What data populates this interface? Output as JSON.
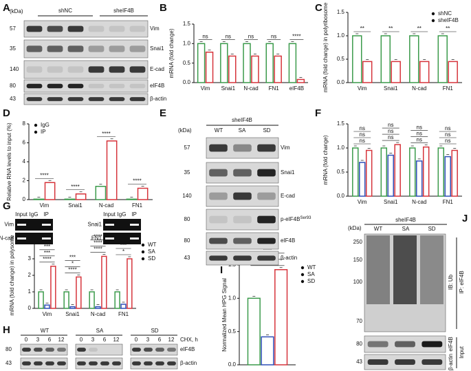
{
  "panel_letters": [
    "A",
    "B",
    "C",
    "D",
    "E",
    "F",
    "G",
    "H",
    "I",
    "J"
  ],
  "chart_data": [
    {
      "type": "bar",
      "ylabel": "mRNA (fold change)",
      "categories": [
        "Vim",
        "Snai1",
        "N-cad",
        "FN1",
        "eIF4B"
      ],
      "series": [
        {
          "color": "#3a9a4a",
          "values": [
            1,
            1,
            1,
            1,
            1
          ]
        },
        {
          "color": "#d6333a",
          "values": [
            0.78,
            0.68,
            0.68,
            0.68,
            0.08
          ]
        }
      ],
      "ylim": [
        0,
        1.5
      ],
      "yticks": [
        {
          "value": 0,
          "label": "0.0"
        },
        {
          "value": 0.5,
          "label": "0.5"
        },
        {
          "value": 1,
          "label": "1.0"
        },
        {
          "value": 1.5,
          "label": "1.5"
        }
      ],
      "annotations": [
        "ns",
        "ns",
        "ns",
        "ns",
        "****"
      ]
    },
    {
      "type": "bar",
      "ylabel": "mRNA (fold change) in polyribosome",
      "categories": [
        "Vim",
        "Snai1",
        "N-cad",
        "FN1"
      ],
      "series": [
        {
          "name": "shNC",
          "color": "#3a9a4a",
          "values": [
            1,
            1,
            1,
            1
          ]
        },
        {
          "name": "sheIF4B",
          "color": "#d6333a",
          "values": [
            0.45,
            0.45,
            0.45,
            0.45
          ]
        }
      ],
      "ylim": [
        0,
        1.5
      ],
      "yticks": [
        {
          "value": 0,
          "label": "0.0"
        },
        {
          "value": 0.5,
          "label": "0.5"
        },
        {
          "value": 1,
          "label": "1.0"
        },
        {
          "value": 1.5,
          "label": "1.5"
        }
      ],
      "annotations": [
        "**",
        "**",
        "**",
        "**"
      ],
      "legend": "top-right"
    },
    {
      "type": "bar",
      "ylabel": "Relative RNA levels to input (%)",
      "categories": [
        "Vim",
        "Snai1",
        "N-cad",
        "FN1"
      ],
      "series": [
        {
          "name": "IgG",
          "color": "#3a9a4a",
          "values": [
            0.05,
            0.05,
            1.4,
            0.05
          ]
        },
        {
          "name": "IP",
          "color": "#d6333a",
          "values": [
            1.8,
            0.6,
            6.2,
            1.2
          ]
        }
      ],
      "ylim": [
        0,
        8
      ],
      "yticks": [
        0,
        2,
        4,
        6,
        8
      ],
      "annotations": [
        "****",
        "****",
        "****",
        "****"
      ],
      "legend": "top-left"
    },
    {
      "type": "bar",
      "ylabel": "mRNA (fold change)",
      "categories": [
        "Vim",
        "Snai1",
        "N-cad",
        "FN1"
      ],
      "series": [
        {
          "color": "#3a9a4a",
          "values": [
            1,
            1,
            1,
            1
          ]
        },
        {
          "color": "#2f4fb8",
          "values": [
            0.7,
            0.85,
            0.73,
            0.82
          ]
        },
        {
          "color": "#d6333a",
          "values": [
            0.95,
            1.07,
            1.02,
            0.95
          ]
        }
      ],
      "ylim": [
        0,
        1.5
      ],
      "yticks": [
        {
          "value": 0,
          "label": "0.0"
        },
        {
          "value": 0.5,
          "label": "0.5"
        },
        {
          "value": 1,
          "label": "1.0"
        },
        {
          "value": 1.5,
          "label": "1.5"
        }
      ],
      "annotations": [
        [
          "ns",
          "ns",
          "ns"
        ],
        [
          "ns",
          "ns",
          "ns"
        ],
        [
          "ns",
          "ns",
          "ns"
        ],
        [
          "ns",
          "ns",
          "ns"
        ]
      ]
    },
    {
      "type": "bar",
      "ylabel": "mRNA (fold change) in polysome",
      "categories": [
        "Vim",
        "Snai1",
        "N-cad",
        "FN1"
      ],
      "series": [
        {
          "name": "WT",
          "color": "#3a9a4a",
          "values": [
            1,
            1,
            1,
            1
          ]
        },
        {
          "name": "SA",
          "color": "#2f4fb8",
          "values": [
            0.2,
            0.1,
            0.1,
            0.25
          ]
        },
        {
          "name": "SD",
          "color": "#d6333a",
          "values": [
            2.55,
            1.9,
            3.15,
            3.0
          ]
        }
      ],
      "ylim": [
        0,
        4
      ],
      "yticks": [
        0,
        1,
        2,
        3,
        4
      ],
      "annotations": [
        [
          "****",
          "***",
          "***"
        ],
        [
          "****",
          "*",
          "***"
        ],
        [
          "****",
          "****",
          "****"
        ],
        [
          "*",
          "***",
          "*"
        ]
      ],
      "legend": "right"
    },
    {
      "type": "bar",
      "ylabel": "Normalized Mean HPG Signal",
      "categories": [
        null
      ],
      "series": [
        {
          "name": "WT",
          "color": "#3a9a4a",
          "values": [
            1.0
          ]
        },
        {
          "name": "SA",
          "color": "#2f4fb8",
          "values": [
            0.42
          ]
        },
        {
          "name": "SD",
          "color": "#d6333a",
          "values": [
            1.43
          ]
        }
      ],
      "ylim": [
        0,
        1.5
      ],
      "yticks": [
        {
          "value": 0,
          "label": "0.0"
        },
        {
          "value": 0.5,
          "label": "0.5"
        },
        {
          "value": 1,
          "label": "1.0"
        },
        {
          "value": 1.5,
          "label": "1.5"
        }
      ],
      "annotations": [
        [
          "*",
          "*",
          "****"
        ]
      ],
      "legend": "right"
    }
  ],
  "blots": {
    "A": {
      "unit": "(kDa)",
      "groups": [
        "shNC",
        "sheIF4B"
      ],
      "markers": [
        "57",
        "35",
        "140",
        "80",
        "43"
      ],
      "proteins": [
        "Vim",
        "Snai1",
        "E-cad",
        "eIF4B",
        "β-actin"
      ]
    },
    "D": {
      "lanes": [
        "Input",
        "IgG",
        "IP"
      ],
      "left_rows": [
        "Vim",
        "N-cad"
      ],
      "right_rows": [
        "Snai1",
        "FN1"
      ]
    },
    "E": {
      "title": "sheIF4B",
      "unit": "(kDa)",
      "lanes": [
        "WT",
        "SA",
        "SD"
      ],
      "markers": [
        "57",
        "35",
        "140",
        "80",
        "80",
        "43"
      ],
      "proteins": [
        "Vim",
        "Snai1",
        "E-cad",
        [
          "p-eIF4B",
          "Ser93"
        ],
        "eIF4B",
        "β-actin"
      ]
    },
    "H": {
      "groups": [
        "WT",
        "SA",
        "SD"
      ],
      "times": [
        "0",
        "3",
        "6",
        "12"
      ],
      "treatment": "CHX, h",
      "markers": [
        "80",
        "43"
      ],
      "proteins": [
        "eIF4B",
        "β-actin"
      ]
    },
    "J": {
      "title": "sheIF4B",
      "unit": "(kDa)",
      "lanes": [
        "WT",
        "SA",
        "SD"
      ],
      "markers": [
        "250",
        "150",
        "100",
        "70",
        "80",
        "43"
      ],
      "ip_label": "IP: eIF4B",
      "ib_label": "IB: Ub",
      "input_label": "Input",
      "proteins": [
        "eIF4B",
        "β-actin"
      ]
    }
  }
}
